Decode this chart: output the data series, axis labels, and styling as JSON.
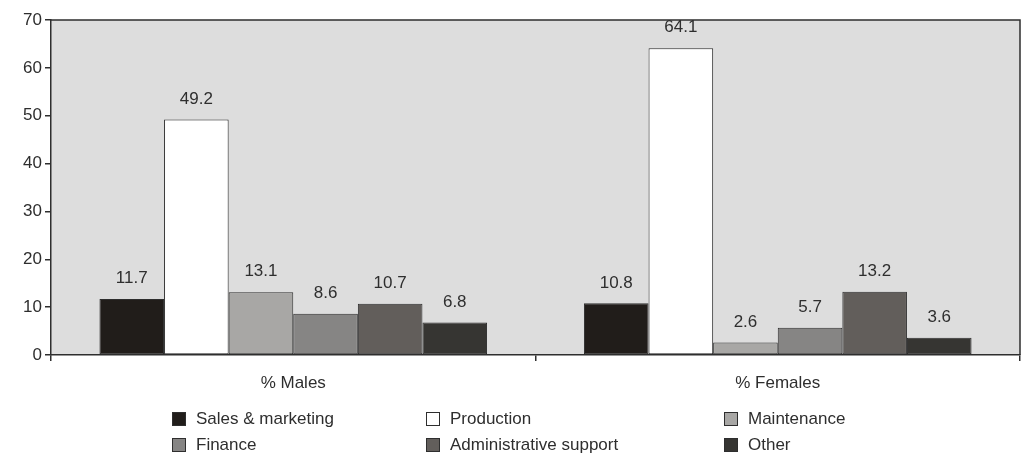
{
  "chart_data": {
    "type": "bar",
    "categories": [
      "% Males",
      "% Females"
    ],
    "series": [
      {
        "name": "Sales & marketing",
        "color": "#211d1a",
        "values": [
          11.7,
          10.8
        ]
      },
      {
        "name": "Production",
        "color": "#ffffff",
        "values": [
          49.2,
          64.1
        ]
      },
      {
        "name": "Maintenance",
        "color": "#a8a7a5",
        "values": [
          13.1,
          2.6
        ]
      },
      {
        "name": "Finance",
        "color": "#868584",
        "values": [
          8.6,
          5.7
        ]
      },
      {
        "name": "Administrative support",
        "color": "#625e5b",
        "values": [
          10.7,
          13.2
        ]
      },
      {
        "name": "Other",
        "color": "#363532",
        "values": [
          6.8,
          3.6
        ]
      }
    ],
    "ylim": [
      0,
      70
    ],
    "yticks": [
      0,
      10,
      20,
      30,
      40,
      50,
      60,
      70
    ],
    "grid": false,
    "legend": "bottom",
    "data_labels": true
  }
}
